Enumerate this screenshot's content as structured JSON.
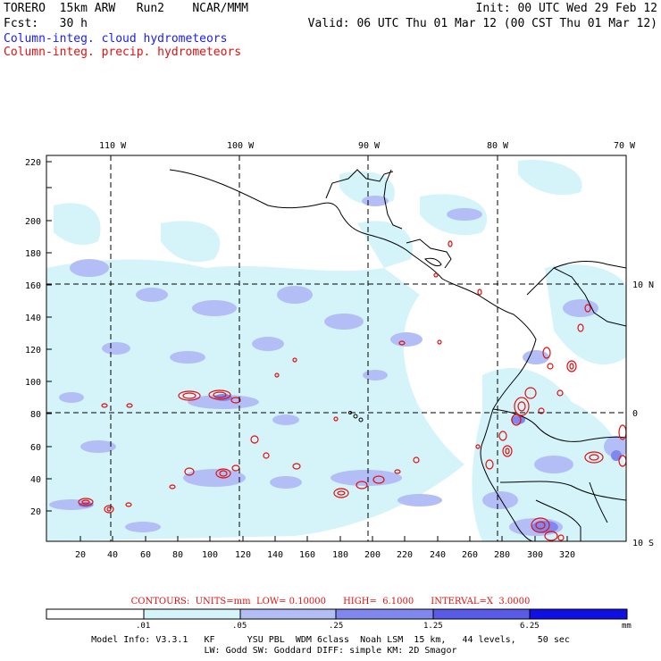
{
  "header": {
    "line1_left": "TORERO  15km ARW   Run2    NCAR/MMM",
    "line1_right": "Init: 00 UTC Wed 29 Feb 12",
    "line2_left": "Fcst:   30 h",
    "line2_right": "Valid: 06 UTC Thu 01 Mar 12 (00 CST Thu 01 Mar 12)",
    "legend_cloud": "Column-integ. cloud hydrometeors",
    "legend_precip": "Column-integ. precip. hydrometeors"
  },
  "map": {
    "lon_labels": [
      "110 W",
      "100 W",
      "90 W",
      "80 W",
      "70 W"
    ],
    "lat_labels": [
      "10 N",
      "0",
      "10 S"
    ],
    "grid_x_labels": [
      "20",
      "40",
      "60",
      "80",
      "100",
      "120",
      "140",
      "160",
      "180",
      "200",
      "220",
      "240",
      "260",
      "280",
      "300",
      "320"
    ],
    "grid_y_labels": [
      "20",
      "40",
      "60",
      "80",
      "100",
      "120",
      "140",
      "160",
      "180",
      "200",
      "220"
    ]
  },
  "contours": {
    "text": "CONTOURS:  UNITS=mm  LOW= 0.10000      HIGH=  6.1000      INTERVAL=X  3.0000"
  },
  "colorbar": {
    "levels": [
      ".01",
      ".05",
      ".25",
      "1.25",
      "6.25"
    ],
    "unit": "mm",
    "colors": [
      "#ffffff",
      "#d4f4fa",
      "#b4bef6",
      "#8088f0",
      "#5a5ae8",
      "#1010e6"
    ]
  },
  "model_info": {
    "line1": "Model Info: V3.3.1   KF      YSU PBL  WDM 6class  Noah LSM  15 km,   44 levels,    50 sec",
    "line2": "LW: Godd SW: Goddard DIFF: simple KM: 2D Smagor"
  }
}
